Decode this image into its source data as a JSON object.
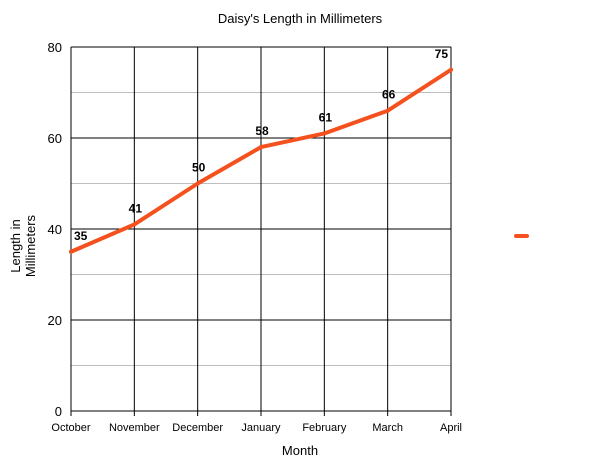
{
  "chart_data": {
    "type": "line",
    "title": "Daisy's Length in Millimeters",
    "xlabel": "Month",
    "ylabel_lines": [
      "Length in",
      "Millimeters"
    ],
    "categories": [
      "October",
      "November",
      "December",
      "January",
      "February",
      "March",
      "April"
    ],
    "series": [
      {
        "values": [
          35,
          41,
          50,
          58,
          61,
          66,
          75
        ],
        "color": "#f4511e"
      }
    ],
    "data_labels": [
      "35",
      "41",
      "50",
      "58",
      "61",
      "66",
      "75"
    ],
    "ylim": [
      0,
      80
    ],
    "y_ticks": [
      0,
      20,
      40,
      60,
      80
    ],
    "y_minor_ticks": [
      10,
      30,
      50,
      70
    ],
    "grid": true,
    "legend": "right",
    "colors": {
      "major_grid": "#000000",
      "minor_grid": "#bdbdbd"
    }
  }
}
